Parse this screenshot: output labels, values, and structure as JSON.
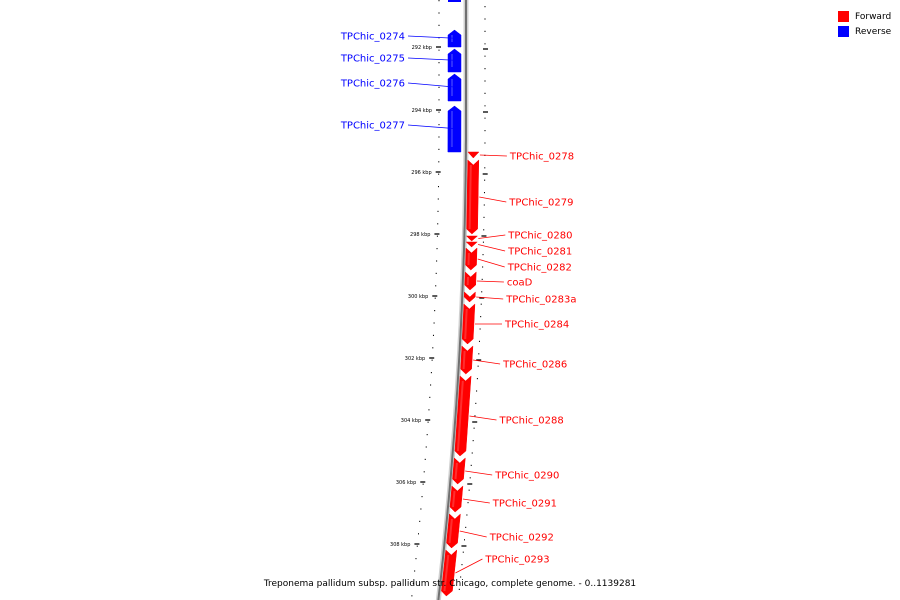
{
  "legend": [
    {
      "label": "Forward",
      "color": "#ff0000"
    },
    {
      "label": "Reverse",
      "color": "#0000ff"
    }
  ],
  "caption": "Treponema pallidum subsp. pallidum str. Chicago, complete genome. - 0..1139281",
  "scale": {
    "unit": "kbp",
    "major_ticks": [
      292,
      294,
      296,
      298,
      300,
      302,
      304,
      306,
      308
    ]
  },
  "genes": [
    {
      "name": "TPChic_0274",
      "strand": "reverse"
    },
    {
      "name": "TPChic_0275",
      "strand": "reverse"
    },
    {
      "name": "TPChic_0276",
      "strand": "reverse"
    },
    {
      "name": "TPChic_0277",
      "strand": "reverse"
    },
    {
      "name": "TPChic_0278",
      "strand": "forward"
    },
    {
      "name": "TPChic_0279",
      "strand": "forward"
    },
    {
      "name": "TPChic_0280",
      "strand": "forward"
    },
    {
      "name": "TPChic_0281",
      "strand": "forward"
    },
    {
      "name": "TPChic_0282",
      "strand": "forward"
    },
    {
      "name": "coaD",
      "strand": "forward"
    },
    {
      "name": "TPChic_0283a",
      "strand": "forward"
    },
    {
      "name": "TPChic_0284",
      "strand": "forward"
    },
    {
      "name": "TPChic_0286",
      "strand": "forward"
    },
    {
      "name": "TPChic_0288",
      "strand": "forward"
    },
    {
      "name": "TPChic_0290",
      "strand": "forward"
    },
    {
      "name": "TPChic_0291",
      "strand": "forward"
    },
    {
      "name": "TPChic_0292",
      "strand": "forward"
    },
    {
      "name": "TPChic_0293",
      "strand": "forward"
    }
  ]
}
